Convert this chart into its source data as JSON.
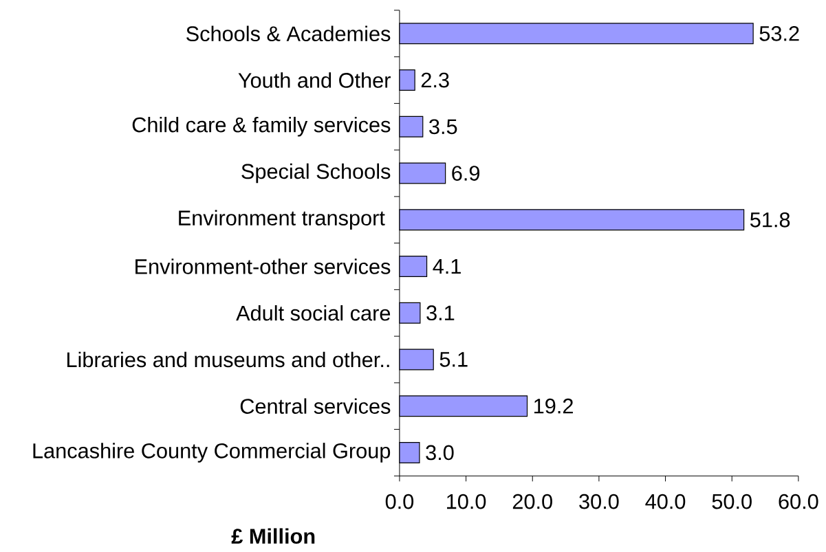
{
  "chart_data": {
    "type": "bar",
    "orientation": "horizontal",
    "xlabel": "£ Million",
    "categories": [
      "Schools & Academies",
      "Youth and Other",
      "Child care & family services",
      "Special Schools",
      "Environment transport ",
      "Environment-other services",
      "Adult social care",
      "Libraries and museums and other..",
      "Central services",
      "Lancashire County Commercial Group"
    ],
    "values": [
      53.2,
      2.3,
      3.5,
      6.9,
      51.8,
      4.1,
      3.1,
      5.1,
      19.2,
      3.0
    ],
    "value_labels": [
      "53.2",
      "2.3",
      "3.5",
      "6.9",
      "51.8",
      "4.1",
      "3.1",
      "5.1",
      "19.2",
      "3.0"
    ],
    "color": "#9999ff",
    "xlim": [
      0,
      60
    ],
    "xticks": [
      {
        "value": 0,
        "label": "0.0"
      },
      {
        "value": 10,
        "label": "10.0"
      },
      {
        "value": 20,
        "label": "20.0"
      },
      {
        "value": 30,
        "label": "30.0"
      },
      {
        "value": 40,
        "label": "40.0"
      },
      {
        "value": 50,
        "label": "50.0"
      },
      {
        "value": 60,
        "label": "60.0"
      }
    ]
  }
}
